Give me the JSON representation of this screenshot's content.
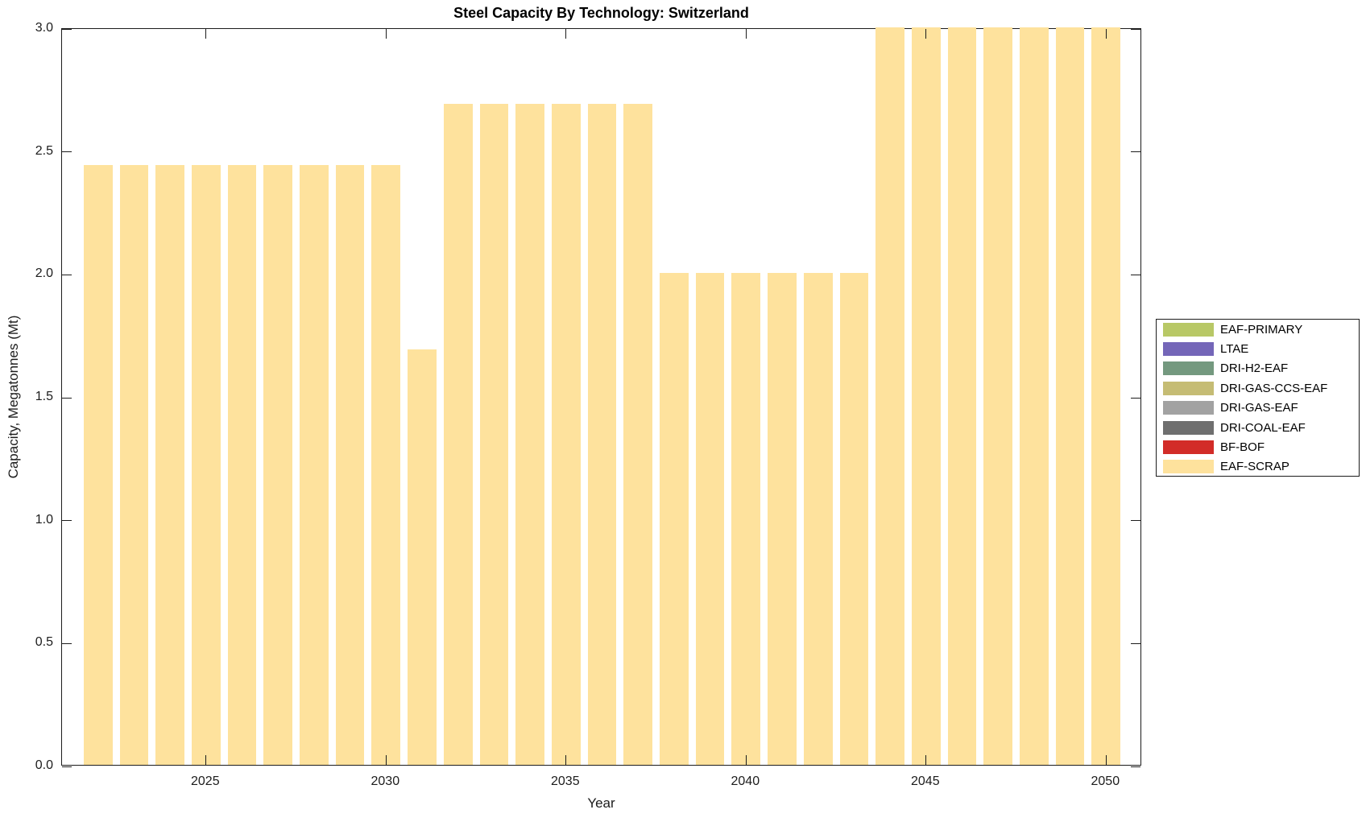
{
  "chart_data": {
    "type": "bar",
    "title": "Steel Capacity By Technology: Switzerland",
    "xlabel": "Year",
    "ylabel": "Capacity, Megatonnes (Mt)",
    "xlim": [
      2021,
      2051
    ],
    "ylim": [
      0,
      3
    ],
    "x_ticks": [
      2025,
      2030,
      2035,
      2040,
      2045,
      2050
    ],
    "y_ticks": [
      0,
      0.5,
      1,
      1.5,
      2,
      2.5,
      3
    ],
    "y_tick_labels": [
      "0.0",
      "0.5",
      "1.0",
      "1.5",
      "2.0",
      "2.5",
      "3.0"
    ],
    "grid": false,
    "bar_width_fraction": 0.8,
    "categories": [
      2022,
      2023,
      2024,
      2025,
      2026,
      2027,
      2028,
      2029,
      2030,
      2031,
      2032,
      2033,
      2034,
      2035,
      2036,
      2037,
      2038,
      2039,
      2040,
      2041,
      2042,
      2043,
      2044,
      2045,
      2046,
      2047,
      2048,
      2049,
      2050
    ],
    "series": [
      {
        "name": "EAF-SCRAP",
        "color": "#FEE29D",
        "values": [
          2.44,
          2.44,
          2.44,
          2.44,
          2.44,
          2.44,
          2.44,
          2.44,
          2.44,
          1.69,
          2.69,
          2.69,
          2.69,
          2.69,
          2.69,
          2.69,
          2.0,
          2.0,
          2.0,
          2.0,
          2.0,
          2.0,
          3.0,
          3.0,
          3.0,
          3.0,
          3.0,
          3.0,
          3.0
        ]
      }
    ],
    "legend_position": "right-outside",
    "legend": [
      {
        "label": "EAF-PRIMARY",
        "color": "#B8C866"
      },
      {
        "label": "LTAE",
        "color": "#7466B8"
      },
      {
        "label": "DRI-H2-EAF",
        "color": "#74997F"
      },
      {
        "label": "DRI-GAS-CCS-EAF",
        "color": "#C5BC74"
      },
      {
        "label": "DRI-GAS-EAF",
        "color": "#A2A2A2"
      },
      {
        "label": "DRI-COAL-EAF",
        "color": "#6F6F6F"
      },
      {
        "label": "BF-BOF",
        "color": "#D22C28"
      },
      {
        "label": "EAF-SCRAP",
        "color": "#FEE29D"
      }
    ],
    "colors": {
      "axis": "#1c1c1c",
      "background": "#FFFFFF",
      "title_text": "#000000"
    }
  }
}
